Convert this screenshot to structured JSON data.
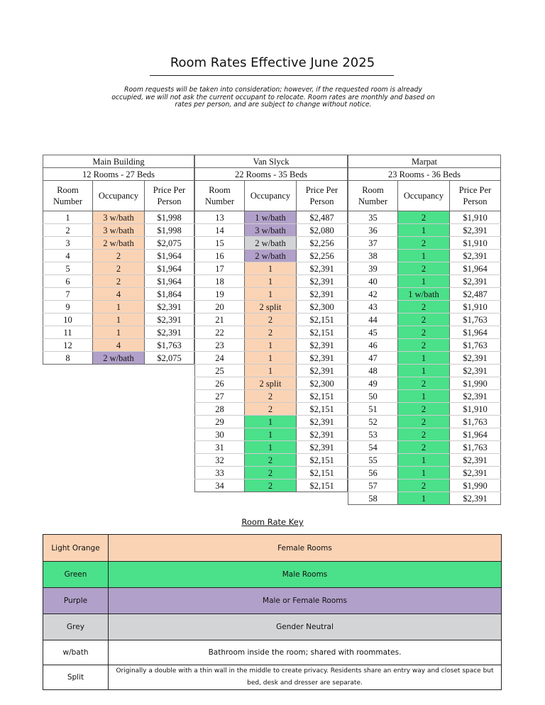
{
  "title": "Room Rates Effective June 2025",
  "note": "Room requests will be taken into consideration; however, if the requested room is already occupied, we will not ask the current occupant to relocate. Room rates are monthly and based on rates per person, and are subject to change without notice.",
  "colors": {
    "O": "#FAD3B5",
    "M": "#4BE08A",
    "P": "#B1A0C9",
    "G": "#D3D4D6"
  },
  "column_headers": {
    "room": "Room Number",
    "occupancy": "Occupancy",
    "price": "Price Per Person"
  },
  "buildings": [
    {
      "name": "Main Building",
      "summary": "12 Rooms - 27 Beds",
      "rows": [
        [
          "1",
          "3 w/bath",
          "$1,998",
          "O"
        ],
        [
          "2",
          "3 w/bath",
          "$1,998",
          "O"
        ],
        [
          "3",
          "2 w/bath",
          "$2,075",
          "O"
        ],
        [
          "4",
          "2",
          "$1,964",
          "O"
        ],
        [
          "5",
          "2",
          "$1,964",
          "O"
        ],
        [
          "6",
          "2",
          "$1,964",
          "O"
        ],
        [
          "7",
          "4",
          "$1,864",
          "O"
        ],
        [
          "9",
          "1",
          "$2,391",
          "O"
        ],
        [
          "10",
          "1",
          "$2,391",
          "O"
        ],
        [
          "11",
          "1",
          "$2,391",
          "O"
        ],
        [
          "12",
          "4",
          "$1,763",
          "O"
        ],
        [
          "8",
          "2 w/bath",
          "$2,075",
          "P"
        ]
      ]
    },
    {
      "name": "Van Slyck",
      "summary": "22 Rooms - 35 Beds",
      "rows": [
        [
          "13",
          "1 w/bath",
          "$2,487",
          "P"
        ],
        [
          "14",
          "3 w/bath",
          "$2,080",
          "P"
        ],
        [
          "15",
          "2 w/bath",
          "$2,256",
          "G"
        ],
        [
          "16",
          "2 w/bath",
          "$2,256",
          "P"
        ],
        [
          "17",
          "1",
          "$2,391",
          "O"
        ],
        [
          "18",
          "1",
          "$2,391",
          "O"
        ],
        [
          "19",
          "1",
          "$2,391",
          "O"
        ],
        [
          "20",
          "2 split",
          "$2,300",
          "O"
        ],
        [
          "21",
          "2",
          "$2,151",
          "O"
        ],
        [
          "22",
          "2",
          "$2,151",
          "O"
        ],
        [
          "23",
          "1",
          "$2,391",
          "O"
        ],
        [
          "24",
          "1",
          "$2,391",
          "O"
        ],
        [
          "25",
          "1",
          "$2,391",
          "O"
        ],
        [
          "26",
          "2 split",
          "$2,300",
          "O"
        ],
        [
          "27",
          "2",
          "$2,151",
          "O"
        ],
        [
          "28",
          "2",
          "$2,151",
          "O"
        ],
        [
          "29",
          "1",
          "$2,391",
          "M"
        ],
        [
          "30",
          "1",
          "$2,391",
          "M"
        ],
        [
          "31",
          "1",
          "$2,391",
          "M"
        ],
        [
          "32",
          "2",
          "$2,151",
          "M"
        ],
        [
          "33",
          "2",
          "$2,151",
          "M"
        ],
        [
          "34",
          "2",
          "$2,151",
          "M"
        ]
      ]
    },
    {
      "name": "Marpat",
      "summary": "23 Rooms - 36 Beds",
      "rows": [
        [
          "35",
          "2",
          "$1,910",
          "M"
        ],
        [
          "36",
          "1",
          "$2,391",
          "M"
        ],
        [
          "37",
          "2",
          "$1,910",
          "M"
        ],
        [
          "38",
          "1",
          "$2,391",
          "M"
        ],
        [
          "39",
          "2",
          "$1,964",
          "M"
        ],
        [
          "40",
          "1",
          "$2,391",
          "M"
        ],
        [
          "42",
          "1 w/bath",
          "$2,487",
          "M"
        ],
        [
          "43",
          "2",
          "$1,910",
          "M"
        ],
        [
          "44",
          "2",
          "$1,763",
          "M"
        ],
        [
          "45",
          "2",
          "$1,964",
          "M"
        ],
        [
          "46",
          "2",
          "$1,763",
          "M"
        ],
        [
          "47",
          "1",
          "$2,391",
          "M"
        ],
        [
          "48",
          "1",
          "$2,391",
          "M"
        ],
        [
          "49",
          "2",
          "$1,990",
          "M"
        ],
        [
          "50",
          "1",
          "$2,391",
          "M"
        ],
        [
          "51",
          "2",
          "$1,910",
          "M"
        ],
        [
          "52",
          "2",
          "$1,763",
          "M"
        ],
        [
          "53",
          "2",
          "$1,964",
          "M"
        ],
        [
          "54",
          "2",
          "$1,763",
          "M"
        ],
        [
          "55",
          "1",
          "$2,391",
          "M"
        ],
        [
          "56",
          "1",
          "$2,391",
          "M"
        ],
        [
          "57",
          "2",
          "$1,990",
          "M"
        ],
        [
          "58",
          "1",
          "$2,391",
          "M"
        ]
      ]
    }
  ],
  "key": {
    "title": "Room Rate Key",
    "rows": [
      {
        "label": "Light Orange",
        "desc": "Female Rooms",
        "color": "#FAD3B5"
      },
      {
        "label": "Green",
        "desc": "Male Rooms",
        "color": "#4BE08A"
      },
      {
        "label": "Purple",
        "desc": "Male or Female Rooms",
        "color": "#B1A0C9"
      },
      {
        "label": "Grey",
        "desc": "Gender Neutral",
        "color": "#D3D4D6"
      },
      {
        "label": "w/bath",
        "desc": "Bathroom inside the room; shared with roommates.",
        "color": "#FFFFFF"
      },
      {
        "label": "Split",
        "desc": "Originally a double  with a thin wall in the middle to create privacy. Residents share an entry way and closet space but bed, desk and dresser are separate.",
        "color": "#FFFFFF"
      }
    ]
  }
}
